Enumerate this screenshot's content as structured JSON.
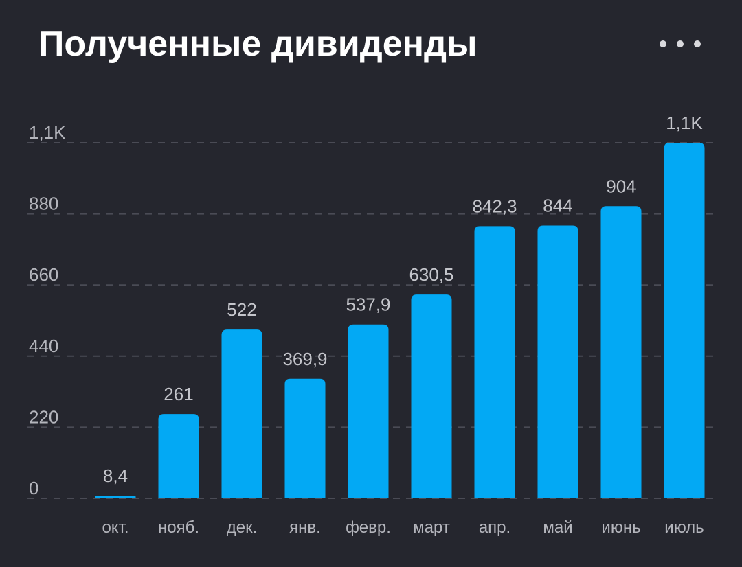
{
  "header": {
    "title": "Полученные дивиденды",
    "menu_icon": "more-horizontal-icon"
  },
  "colors": {
    "background": "#25262e",
    "bar": "#03a9f4",
    "grid": "#4a4b55"
  },
  "chart_data": {
    "type": "bar",
    "title": "Полученные дивиденды",
    "xlabel": "",
    "ylabel": "",
    "categories": [
      "окт.",
      "нояб.",
      "дек.",
      "янв.",
      "февр.",
      "март",
      "апр.",
      "май",
      "июнь",
      "июль"
    ],
    "values": [
      8.4,
      261,
      522,
      369.9,
      537.9,
      630.5,
      842.3,
      844,
      904,
      1100
    ],
    "value_labels": [
      "8,4",
      "261",
      "522",
      "369,9",
      "537,9",
      "630,5",
      "842,3",
      "844",
      "904",
      "1,1K"
    ],
    "yticks": [
      0,
      220,
      440,
      660,
      880,
      1100
    ],
    "ytick_labels": [
      "0",
      "220",
      "440",
      "660",
      "880",
      "1,1K"
    ],
    "ylim": [
      0,
      1100
    ],
    "grid": true,
    "legend": false
  }
}
